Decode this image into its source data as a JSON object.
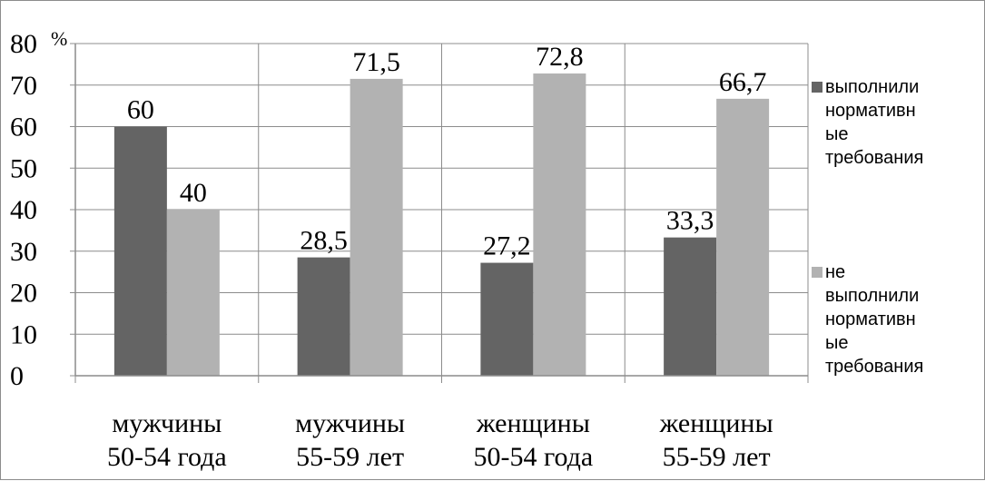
{
  "chart_data": {
    "type": "bar",
    "title": "",
    "xlabel": "",
    "ylabel": "",
    "y_unit": "%",
    "ylim": [
      0,
      80
    ],
    "y_ticks": [
      0,
      10,
      20,
      30,
      40,
      50,
      60,
      70,
      80
    ],
    "grid": "vertical and horizontal",
    "legend_position": "right",
    "categories": [
      [
        "мужчины",
        "50-54 года"
      ],
      [
        "мужчины",
        "55-59 лет"
      ],
      [
        "женщины",
        "50-54 года"
      ],
      [
        "женщины",
        "55-59 лет"
      ]
    ],
    "series": [
      {
        "name_lines": [
          "выполнили",
          "нормативн",
          "ые",
          "требования"
        ],
        "color": "#646464",
        "values": [
          60,
          28.5,
          27.2,
          33.3
        ],
        "labels": [
          "60",
          "28,5",
          "27,2",
          "33,3"
        ]
      },
      {
        "name_lines": [
          "не",
          "выполнили",
          "нормативн",
          "ые",
          "требования"
        ],
        "color": "#b2b2b2",
        "values": [
          40,
          71.5,
          72.8,
          66.7
        ],
        "labels": [
          "40",
          "71,5",
          "72,8",
          "66,7"
        ]
      }
    ]
  }
}
